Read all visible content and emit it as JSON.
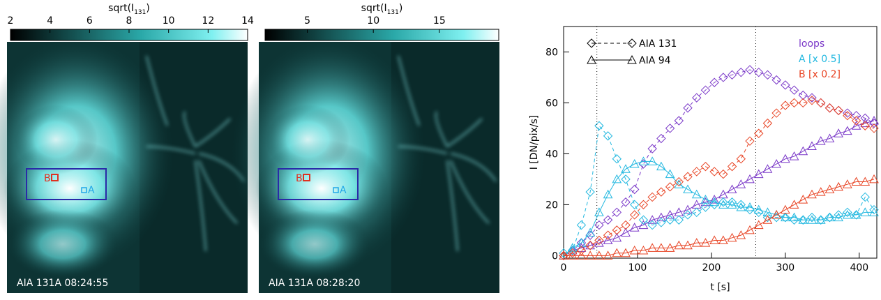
{
  "panels": [
    {
      "colorbar_label": {
        "main": "sqrt(I",
        "sub": "131",
        "close": ")"
      },
      "cbar_range": [
        2,
        14
      ],
      "cbar_ticks": [
        2,
        4,
        6,
        8,
        10,
        12,
        14
      ],
      "caption": "AIA 131A 08:24:55",
      "box_labels": [
        "B",
        "A"
      ]
    },
    {
      "colorbar_label": {
        "main": "sqrt(I",
        "sub": "131",
        "close": ")"
      },
      "cbar_range": [
        1.8,
        19.5
      ],
      "cbar_ticks": [
        5,
        10,
        15
      ],
      "caption": "AIA 131A 08:28:20",
      "box_labels": [
        "B",
        "A"
      ]
    }
  ],
  "chart_data": {
    "type": "line",
    "xlabel": "t [s]",
    "ylabel": "I [DN/pix/s]",
    "xlim": [
      0,
      420
    ],
    "ylim": [
      -1,
      90
    ],
    "xticks": [
      0,
      100,
      200,
      300,
      400
    ],
    "yticks": [
      0,
      20,
      40,
      60,
      80
    ],
    "vlines": [
      45,
      260
    ],
    "instruments": [
      {
        "name": "AIA 131",
        "line": "dashed",
        "marker": "diamond"
      },
      {
        "name": "AIA 94",
        "line": "solid",
        "marker": "triangle"
      }
    ],
    "x": [
      0,
      12,
      24,
      36,
      48,
      60,
      72,
      84,
      96,
      108,
      120,
      132,
      144,
      156,
      168,
      180,
      192,
      204,
      216,
      228,
      240,
      252,
      264,
      276,
      288,
      300,
      312,
      324,
      336,
      348,
      360,
      372,
      384,
      396,
      408,
      420
    ],
    "series": [
      {
        "name": "loops",
        "color": "#7a38c8",
        "values": [
          [
            0,
            2,
            5,
            8,
            12,
            14,
            17,
            21,
            26,
            36,
            42,
            46,
            50,
            53,
            58,
            62,
            65,
            68,
            70,
            71,
            72,
            73,
            72,
            71,
            69,
            67,
            65,
            63,
            62,
            60,
            58,
            57,
            56,
            55,
            54,
            52
          ],
          [
            0,
            2,
            3,
            4,
            5,
            6,
            7,
            9,
            11,
            12,
            14,
            15,
            16,
            17,
            18,
            20,
            21,
            22,
            24,
            26,
            28,
            30,
            32,
            34,
            36,
            38,
            39,
            41,
            43,
            45,
            46,
            48,
            49,
            51,
            52,
            53
          ]
        ]
      },
      {
        "name": "A [x 0.5]",
        "color": "#22b8e0",
        "values": [
          [
            1,
            2,
            12,
            25,
            51,
            47,
            38,
            30,
            20,
            14,
            12,
            13,
            14,
            14,
            16,
            17,
            19,
            20,
            21,
            21,
            20,
            18,
            17,
            15,
            15,
            15,
            14,
            14,
            15,
            14,
            15,
            16,
            17,
            16,
            23,
            18
          ],
          [
            0,
            3,
            5,
            9,
            17,
            24,
            30,
            34,
            36,
            37,
            37,
            35,
            32,
            28,
            26,
            24,
            22,
            21,
            20,
            20,
            19,
            19,
            18,
            17,
            16,
            15,
            15,
            14,
            14,
            14,
            15,
            15,
            16,
            16,
            17,
            17
          ]
        ]
      },
      {
        "name": "B [x 0.2]",
        "color": "#e84424",
        "values": [
          [
            0,
            1,
            2,
            4,
            6,
            8,
            10,
            12,
            16,
            20,
            23,
            25,
            27,
            29,
            31,
            33,
            35,
            33,
            32,
            35,
            38,
            45,
            48,
            52,
            56,
            59,
            60,
            60,
            61,
            60,
            58,
            57,
            55,
            53,
            51,
            50
          ],
          [
            0,
            0,
            0,
            0,
            0,
            0,
            1,
            1,
            2,
            2,
            3,
            3,
            3,
            4,
            4,
            5,
            5,
            6,
            6,
            7,
            8,
            10,
            12,
            14,
            16,
            18,
            20,
            22,
            24,
            25,
            26,
            27,
            28,
            29,
            29,
            30
          ]
        ]
      }
    ]
  }
}
